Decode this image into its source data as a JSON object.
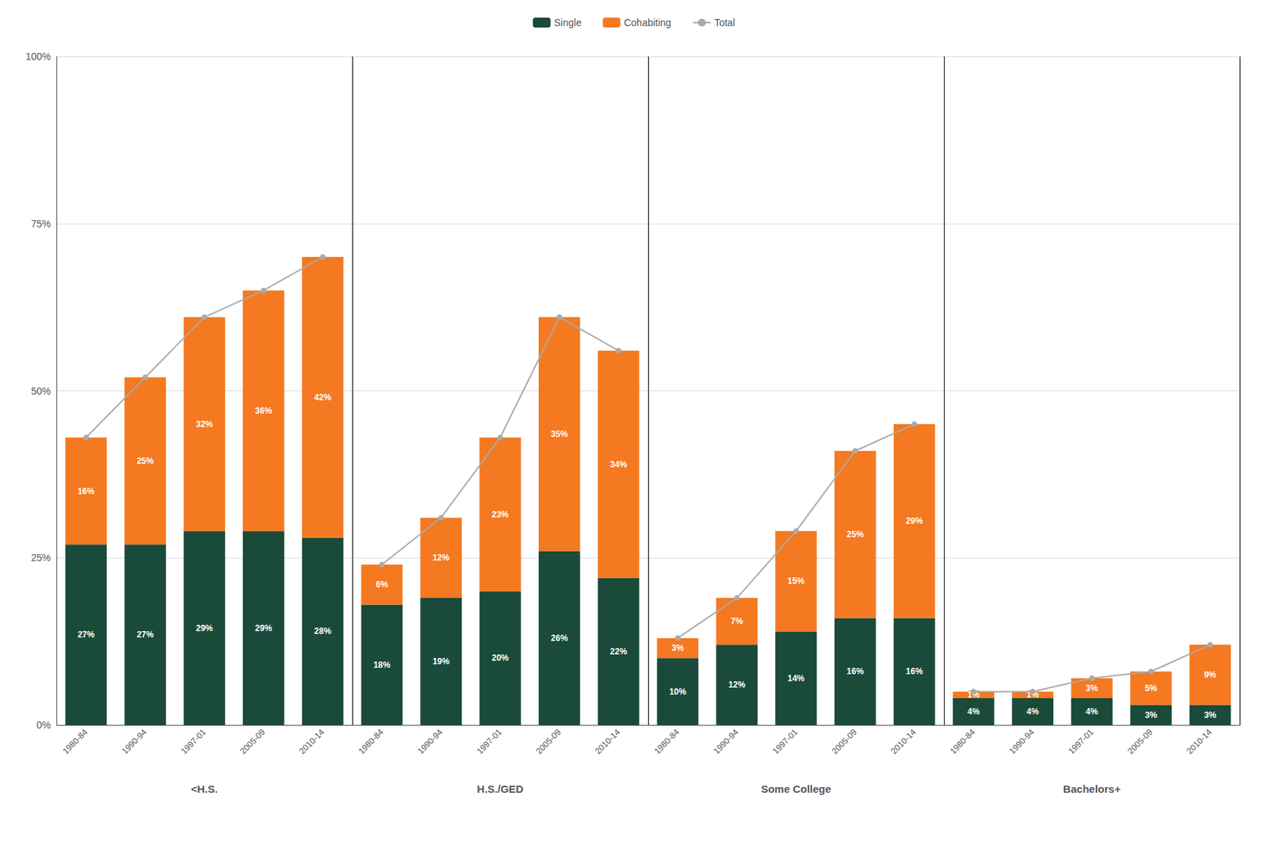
{
  "chart_data": {
    "type": "bar",
    "stacked": true,
    "data_labels": true,
    "grid": true,
    "legend": "top",
    "groups": [
      "<H.S.",
      "H.S./GED",
      "Some College",
      "Bachelors+"
    ],
    "categories": [
      "1980-84",
      "1990-94",
      "1997-01",
      "2005-09",
      "2010-14",
      "1980-84",
      "1990-94",
      "1997-01",
      "2005-09",
      "2010-14",
      "1980-84",
      "1990-94",
      "1997-01",
      "2005-09",
      "2010-14",
      "1980-84",
      "1990-94",
      "1997-01",
      "2005-09",
      "2010-14"
    ],
    "series": [
      {
        "name": "Single",
        "color": "#1a4a3a",
        "values": [
          27,
          27,
          29,
          29,
          28,
          18,
          19,
          20,
          26,
          22,
          10,
          12,
          14,
          16,
          16,
          4,
          4,
          4,
          3,
          3
        ],
        "value_labels": [
          "27%",
          "27%",
          "29%",
          "29%",
          "28%",
          "18%",
          "19%",
          "20%",
          "26%",
          "22%",
          "10%",
          "12%",
          "14%",
          "16%",
          "16%",
          "4%",
          "4%",
          "4%",
          "3%",
          "3%"
        ]
      },
      {
        "name": "Cohabiting",
        "color": "#f47920",
        "values": [
          16,
          25,
          32,
          36,
          42,
          6,
          12,
          23,
          35,
          34,
          3,
          7,
          15,
          25,
          29,
          1,
          1,
          3,
          5,
          9
        ],
        "value_labels": [
          "16%",
          "25%",
          "32%",
          "36%",
          "42%",
          "6%",
          "12%",
          "23%",
          "35%",
          "34%",
          "3%",
          "7%",
          "15%",
          "25%",
          "29%",
          "1%",
          "1%",
          "3%",
          "5%",
          "9%"
        ]
      },
      {
        "name": "Total",
        "type": "line",
        "color": "#aaaaaa",
        "marker": "circle",
        "values": [
          43,
          52,
          61,
          65,
          70,
          24,
          31,
          43,
          61,
          56,
          13,
          19,
          29,
          41,
          45,
          5,
          5,
          7,
          8,
          12
        ]
      }
    ],
    "ylim": [
      0,
      100
    ],
    "yticks": [
      {
        "value": 0,
        "label": "0%"
      },
      {
        "value": 25,
        "label": "25%"
      },
      {
        "value": 50,
        "label": "50%"
      },
      {
        "value": 75,
        "label": "75%"
      },
      {
        "value": 100,
        "label": "100%"
      }
    ]
  }
}
